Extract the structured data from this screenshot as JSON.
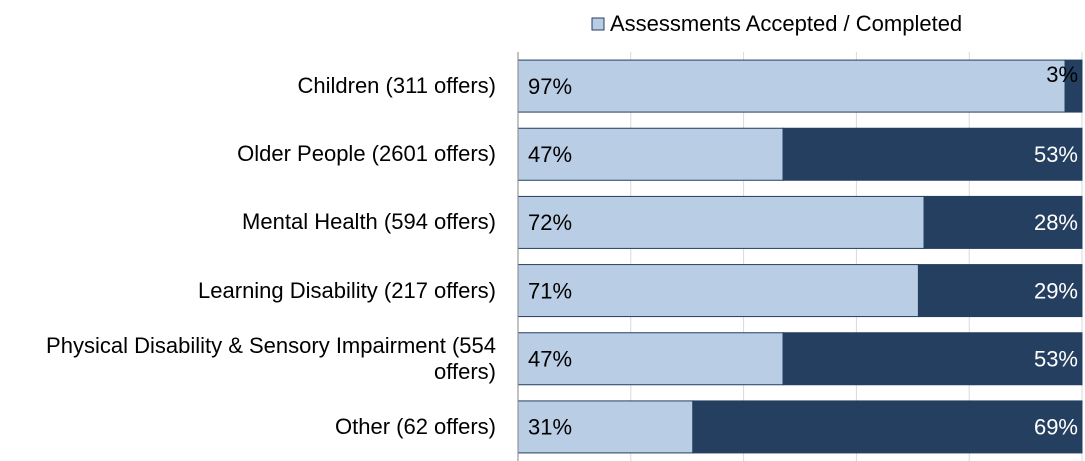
{
  "chart_data": {
    "type": "bar",
    "orientation": "horizontal",
    "stacked": true,
    "categories": [
      "Children (311 offers)",
      "Older People (2601 offers)",
      "Mental Health (594 offers)",
      "Learning Disability (217 offers)",
      "Physical Disability & Sensory Impairment (554 offers)",
      "Other (62 offers)"
    ],
    "series": [
      {
        "name": "Assessments Accepted / Completed",
        "color": "#b9cde5",
        "values": [
          97,
          47,
          72,
          71,
          47,
          31
        ],
        "value_labels": [
          "97%",
          "47%",
          "72%",
          "71%",
          "47%",
          "31%"
        ]
      },
      {
        "color": "#243f60",
        "values": [
          3,
          53,
          28,
          29,
          53,
          69
        ],
        "value_labels": [
          "3%",
          "53%",
          "28%",
          "29%",
          "53%",
          "69%"
        ]
      }
    ],
    "xlim": [
      0,
      100
    ],
    "xticks": [
      0,
      20,
      40,
      60,
      80,
      100
    ],
    "grid": true,
    "legend": "top"
  }
}
